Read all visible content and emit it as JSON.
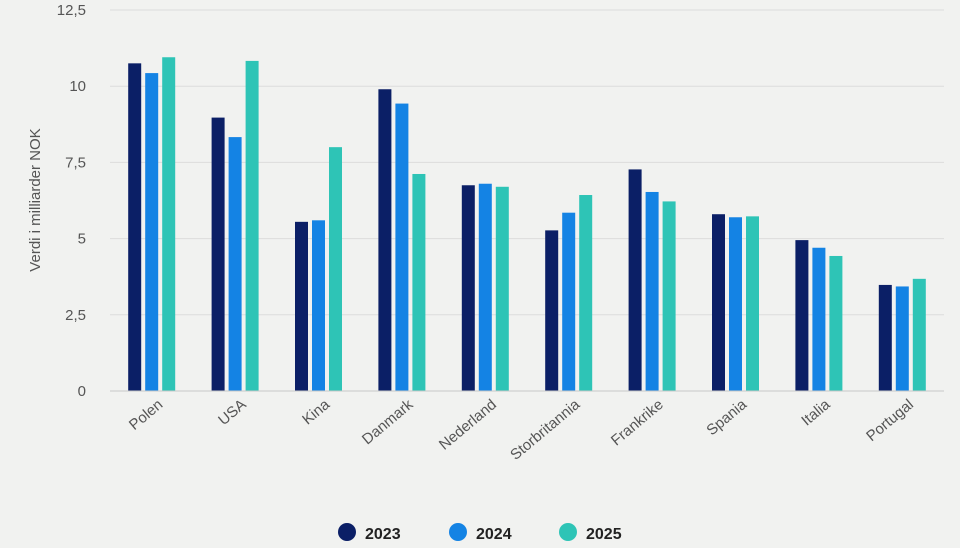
{
  "chart_data": {
    "type": "bar",
    "categories": [
      "Polen",
      "USA",
      "Kina",
      "Danmark",
      "Nederland",
      "Storbritannia",
      "Frankrike",
      "Spania",
      "Italia",
      "Portugal"
    ],
    "series": [
      {
        "name": "2023",
        "color": "#0b1f66",
        "values": [
          10.75,
          8.97,
          5.55,
          9.9,
          6.75,
          5.27,
          7.27,
          5.8,
          4.95,
          3.48
        ]
      },
      {
        "name": "2024",
        "color": "#1483e4",
        "values": [
          10.43,
          8.33,
          5.6,
          9.43,
          6.8,
          5.85,
          6.53,
          5.7,
          4.7,
          3.43
        ]
      },
      {
        "name": "2025",
        "color": "#2ec4b6",
        "values": [
          10.95,
          10.83,
          8.0,
          7.12,
          6.7,
          6.43,
          6.22,
          5.73,
          4.43,
          3.68
        ]
      }
    ],
    "yticks": [
      0,
      2.5,
      5,
      7.5,
      10,
      12.5
    ],
    "ytick_labels": [
      "0",
      "2,5",
      "5",
      "7,5",
      "10",
      "12,5"
    ],
    "ylim": [
      0,
      12.5
    ],
    "ylabel": "Verdi i milliarder NOK",
    "legend_position": "bottom",
    "grid": true
  }
}
